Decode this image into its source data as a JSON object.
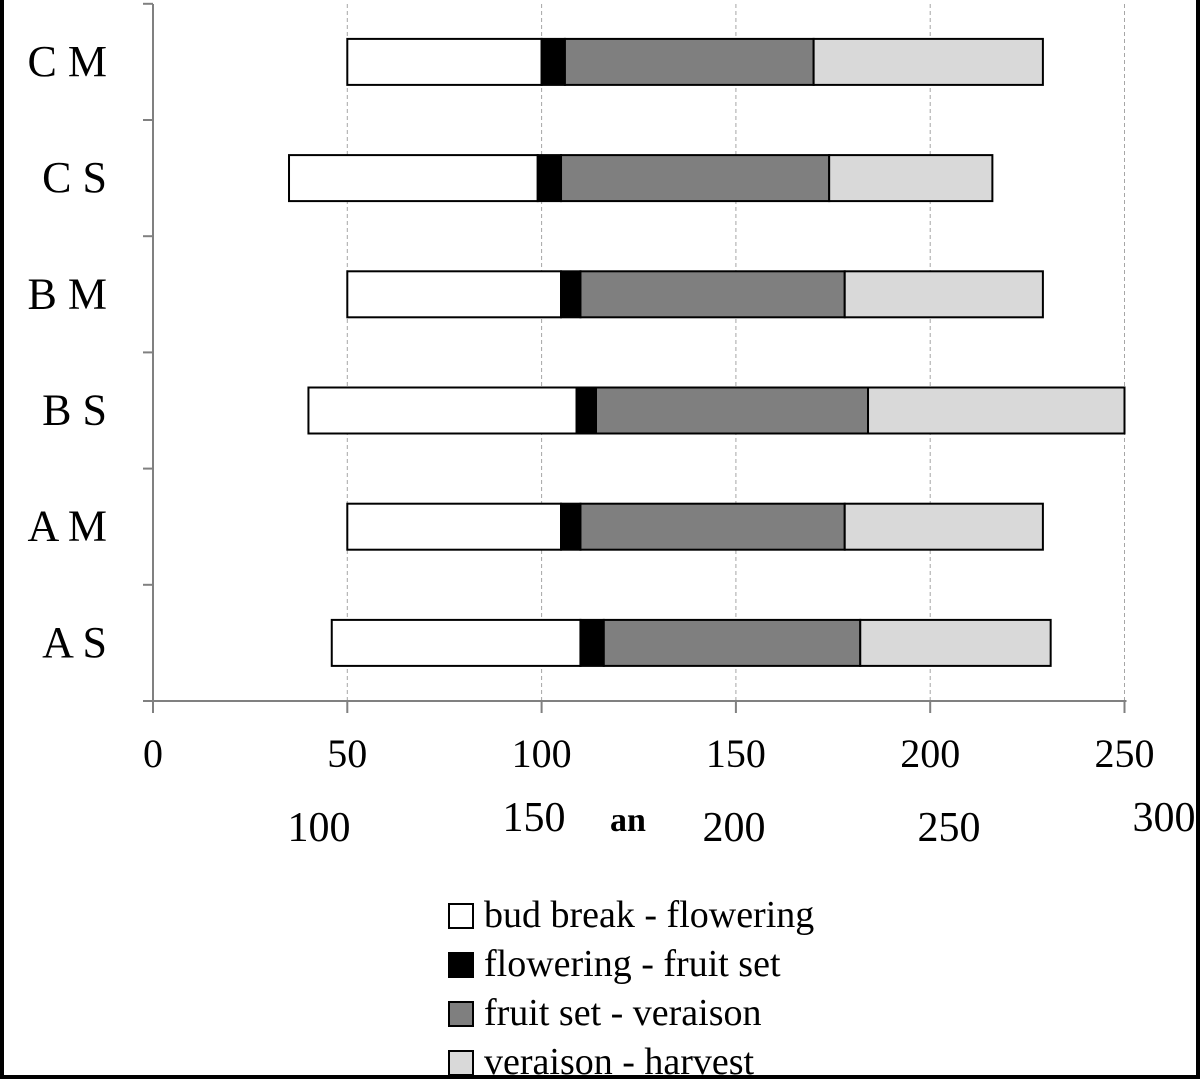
{
  "chart_data": {
    "type": "bar",
    "orientation": "horizontal",
    "stacked": true,
    "title": "",
    "xlabel": "",
    "ylabel": "",
    "xlim": [
      0,
      250
    ],
    "x_ticks": [
      0,
      50,
      100,
      150,
      200,
      250
    ],
    "x_tick_labels": [
      "0",
      "50",
      "100",
      "150",
      "200",
      "250"
    ],
    "secondary_x_tick_labels": [
      "100",
      "150",
      "200",
      "250",
      "300"
    ],
    "stray_axis_text": "an",
    "grid": "vertical dashed",
    "legend_position": "bottom",
    "categories": [
      "A S",
      "A M",
      "B S",
      "B M",
      "C S",
      "C M"
    ],
    "series": [
      {
        "name": "bud break - flowering",
        "color": "#ffffff",
        "starts": [
          46,
          50,
          40,
          50,
          35,
          50
        ],
        "ends": [
          110,
          105,
          109,
          105,
          99,
          100
        ]
      },
      {
        "name": "flowering - fruit set",
        "color": "#000000",
        "starts": [
          110,
          105,
          109,
          105,
          99,
          100
        ],
        "ends": [
          116,
          110,
          114,
          110,
          105,
          106
        ]
      },
      {
        "name": "fruit set - veraison",
        "color": "#7f7f7f",
        "starts": [
          116,
          110,
          114,
          110,
          105,
          106
        ],
        "ends": [
          182,
          178,
          184,
          178,
          174,
          170
        ]
      },
      {
        "name": "veraison - harvest",
        "color": "#d9d9d9",
        "starts": [
          182,
          178,
          184,
          178,
          174,
          170
        ],
        "ends": [
          231,
          229,
          250,
          229,
          216,
          229
        ]
      }
    ]
  }
}
